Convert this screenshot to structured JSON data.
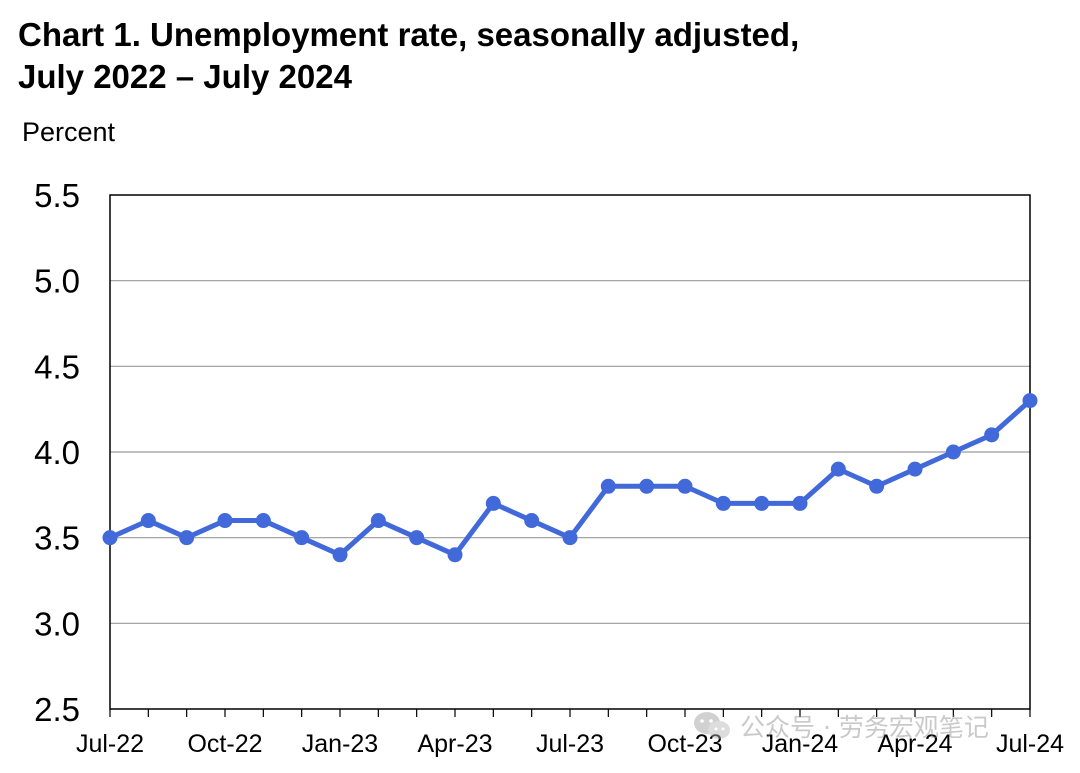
{
  "chart_data": {
    "type": "line",
    "title_line1": "Chart 1. Unemployment rate, seasonally adjusted,",
    "title_line2": "July 2022 – July 2024",
    "ylabel": "Percent",
    "xlabel": "",
    "ylim": [
      2.5,
      5.5
    ],
    "yticks": [
      "5.5",
      "5.0",
      "4.5",
      "4.0",
      "3.5",
      "3.0",
      "2.5"
    ],
    "ytick_values": [
      5.5,
      5.0,
      4.5,
      4.0,
      3.5,
      3.0,
      2.5
    ],
    "x": [
      "Jul-22",
      "Aug-22",
      "Sep-22",
      "Oct-22",
      "Nov-22",
      "Dec-22",
      "Jan-23",
      "Feb-23",
      "Mar-23",
      "Apr-23",
      "May-23",
      "Jun-23",
      "Jul-23",
      "Aug-23",
      "Sep-23",
      "Oct-23",
      "Nov-23",
      "Dec-23",
      "Jan-24",
      "Feb-24",
      "Mar-24",
      "Apr-24",
      "May-24",
      "Jun-24",
      "Jul-24"
    ],
    "xtick_labels": [
      "Jul-22",
      "Oct-22",
      "Jan-23",
      "Apr-23",
      "Jul-23",
      "Oct-23",
      "Jan-24",
      "Apr-24",
      "Jul-24"
    ],
    "series": [
      {
        "values": [
          3.5,
          3.6,
          3.5,
          3.6,
          3.6,
          3.5,
          3.4,
          3.6,
          3.5,
          3.4,
          3.7,
          3.6,
          3.5,
          3.8,
          3.8,
          3.8,
          3.7,
          3.7,
          3.7,
          3.9,
          3.8,
          3.9,
          4.0,
          4.1,
          4.3
        ],
        "color": "#4169d9"
      }
    ],
    "grid": "horizontal",
    "legend": "none"
  },
  "watermark": {
    "text": "公众号 · 劳务宏观笔记",
    "icon": "wechat-icon"
  }
}
